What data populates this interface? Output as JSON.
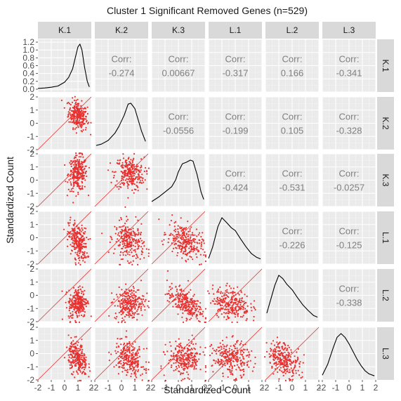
{
  "chart_data": {
    "type": "scatter-matrix",
    "title": "Cluster 1 Significant Removed Genes (n=529)",
    "xlabel": "Standardized Count",
    "ylabel": "Standardized Count",
    "variables": [
      "K.1",
      "K.2",
      "K.3",
      "L.1",
      "L.2",
      "L.3"
    ],
    "corr_label": "Corr:",
    "correlations": [
      {
        "row": "K.1",
        "col": "K.2",
        "value": "-0.274"
      },
      {
        "row": "K.1",
        "col": "K.3",
        "value": "0.00667"
      },
      {
        "row": "K.1",
        "col": "L.1",
        "value": "-0.317"
      },
      {
        "row": "K.1",
        "col": "L.2",
        "value": "0.166"
      },
      {
        "row": "K.1",
        "col": "L.3",
        "value": "-0.341"
      },
      {
        "row": "K.2",
        "col": "K.3",
        "value": "-0.0556"
      },
      {
        "row": "K.2",
        "col": "L.1",
        "value": "-0.199"
      },
      {
        "row": "K.2",
        "col": "L.2",
        "value": "0.105"
      },
      {
        "row": "K.2",
        "col": "L.3",
        "value": "-0.328"
      },
      {
        "row": "K.3",
        "col": "L.1",
        "value": "-0.424"
      },
      {
        "row": "K.3",
        "col": "L.2",
        "value": "-0.531"
      },
      {
        "row": "K.3",
        "col": "L.3",
        "value": "-0.0257"
      },
      {
        "row": "L.1",
        "col": "L.2",
        "value": "-0.226"
      },
      {
        "row": "L.1",
        "col": "L.3",
        "value": "-0.125"
      },
      {
        "row": "L.2",
        "col": "L.3",
        "value": "-0.338"
      }
    ],
    "densities": {
      "K.1": {
        "x": [
          -2.0,
          -1.5,
          -1.0,
          -0.5,
          0.0,
          0.3,
          0.6,
          0.8,
          1.0,
          1.15,
          1.3,
          1.5,
          1.7,
          1.85
        ],
        "y": [
          0.02,
          0.03,
          0.05,
          0.08,
          0.18,
          0.3,
          0.52,
          0.8,
          1.08,
          1.15,
          1.0,
          0.55,
          0.2,
          0.06
        ]
      },
      "K.2": {
        "x": [
          -1.9,
          -1.5,
          -1.0,
          -0.5,
          -0.2,
          0.2,
          0.5,
          0.7,
          1.0,
          1.2,
          1.5,
          1.8
        ],
        "y": [
          0.03,
          0.06,
          0.14,
          0.3,
          0.45,
          0.7,
          0.95,
          0.97,
          0.85,
          0.65,
          0.35,
          0.12
        ]
      },
      "K.3": {
        "x": [
          -2.0,
          -1.5,
          -1.0,
          -0.5,
          -0.2,
          0.0,
          0.3,
          0.6,
          0.9,
          1.1,
          1.4,
          1.7,
          1.9
        ],
        "y": [
          0.04,
          0.12,
          0.22,
          0.32,
          0.45,
          0.6,
          0.75,
          0.78,
          0.82,
          0.8,
          0.55,
          0.22,
          0.08
        ]
      },
      "L.1": {
        "x": [
          -2.0,
          -1.7,
          -1.3,
          -1.0,
          -0.6,
          -0.3,
          0.0,
          0.4,
          0.8,
          1.2,
          1.6,
          1.9
        ],
        "y": [
          0.05,
          0.25,
          0.62,
          0.78,
          0.68,
          0.6,
          0.55,
          0.4,
          0.26,
          0.14,
          0.07,
          0.04
        ]
      },
      "L.2": {
        "x": [
          -1.9,
          -1.6,
          -1.3,
          -1.0,
          -0.7,
          -0.4,
          0.0,
          0.4,
          0.8,
          1.2,
          1.6,
          1.9
        ],
        "y": [
          0.1,
          0.35,
          0.6,
          0.78,
          0.72,
          0.62,
          0.52,
          0.38,
          0.25,
          0.15,
          0.06,
          0.03
        ]
      },
      "L.3": {
        "x": [
          -2.0,
          -1.6,
          -1.2,
          -0.9,
          -0.6,
          -0.3,
          0.0,
          0.3,
          0.6,
          0.9,
          1.2,
          1.5,
          1.9
        ],
        "y": [
          0.03,
          0.2,
          0.45,
          0.62,
          0.68,
          0.62,
          0.52,
          0.4,
          0.28,
          0.18,
          0.1,
          0.05,
          0.02
        ]
      }
    },
    "scatter_clouds": {
      "K.1": {
        "mean": 1.0,
        "sd": 0.35
      },
      "K.2": {
        "mean": 0.6,
        "sd": 0.55
      },
      "K.3": {
        "mean": 0.5,
        "sd": 0.65
      },
      "L.1": {
        "mean": -0.3,
        "sd": 0.7
      },
      "L.2": {
        "mean": -0.6,
        "sd": 0.6
      },
      "L.3": {
        "mean": -0.4,
        "sd": 0.65
      }
    },
    "k1_density_y_ticks": [
      "0.0",
      "0.2",
      "0.4",
      "0.6",
      "0.8",
      "1.0",
      "1.2"
    ],
    "axis_ticks": [
      "-2",
      "-1",
      "0",
      "1",
      "2"
    ],
    "xlim": [
      -2,
      2
    ],
    "ylim": [
      -2,
      2
    ],
    "reference_line": "y = x",
    "grid": true,
    "colors": {
      "points": "#e8302f",
      "ref_line": "#e8302f",
      "panel_bg": "#ebebeb",
      "strip_bg": "#d9d9d9",
      "corr_text": "#7f7f7f"
    }
  }
}
